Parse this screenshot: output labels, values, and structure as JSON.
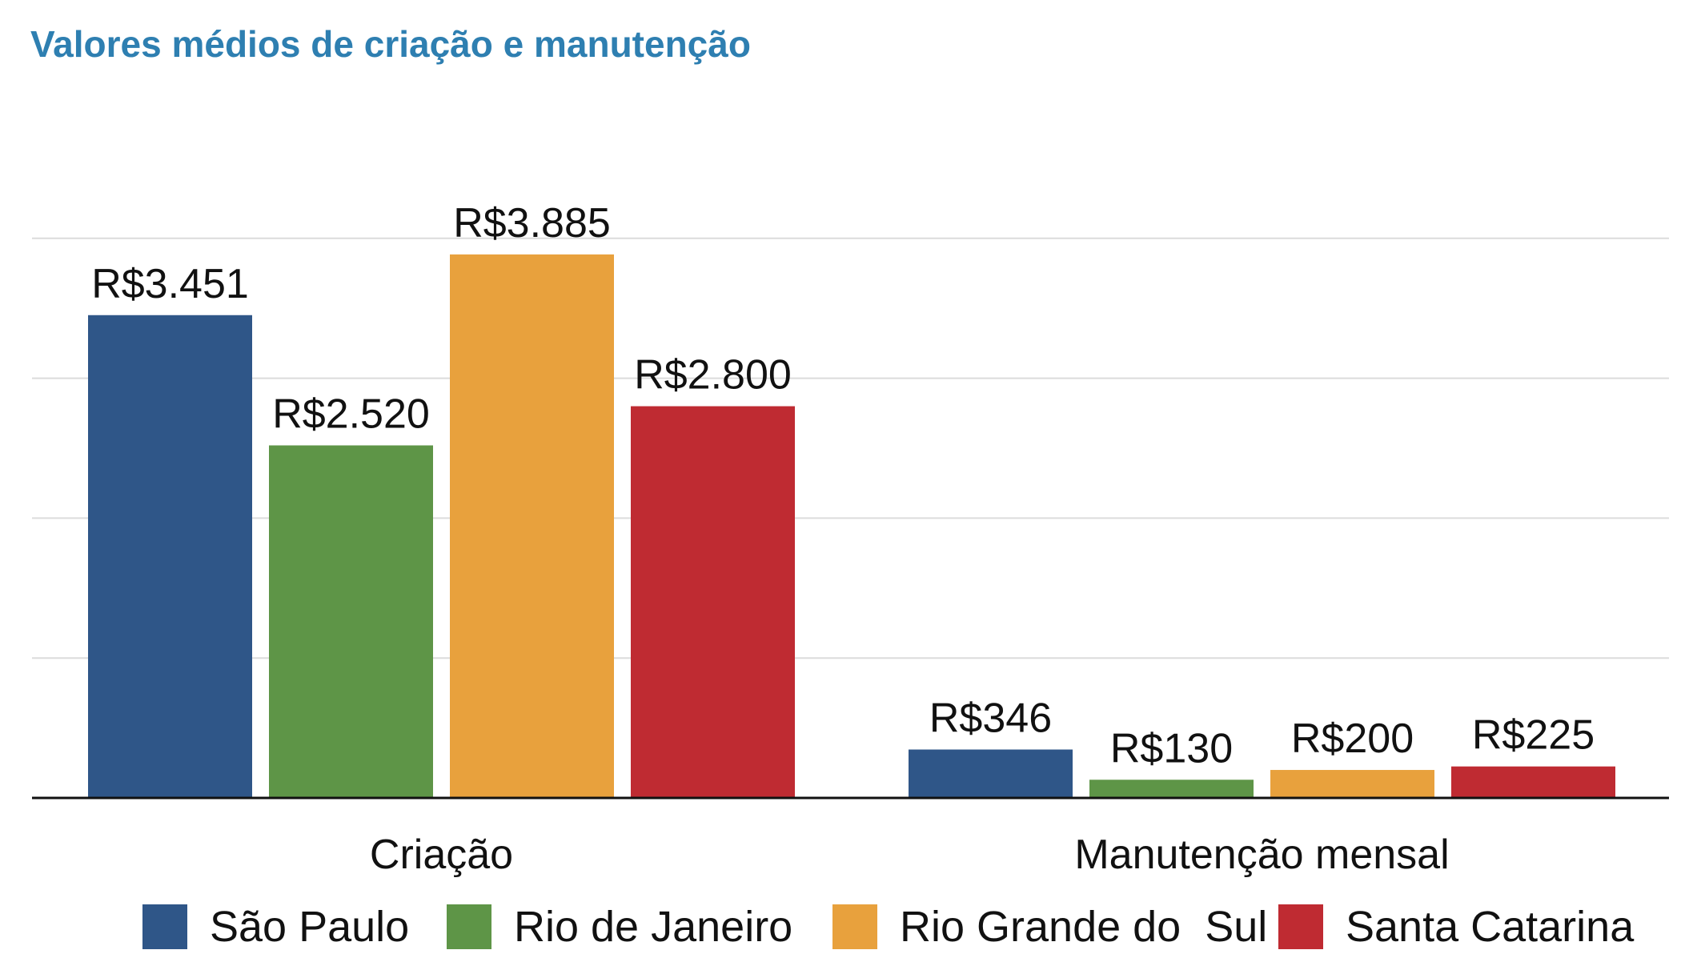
{
  "chart_data": {
    "type": "bar",
    "title": "Valores médios de criação e manutenção",
    "categories": [
      "Criação",
      "Manutenção mensal"
    ],
    "series": [
      {
        "name": "São Paulo",
        "color": "#2f5688",
        "values": [
          3451,
          346
        ],
        "labels": [
          "R$3.451",
          "R$346"
        ]
      },
      {
        "name": "Rio de Janeiro",
        "color": "#5e9547",
        "values": [
          2520,
          130
        ],
        "labels": [
          "R$2.520",
          "R$130"
        ]
      },
      {
        "name": "Rio Grande do  Sul",
        "color": "#e8a13d",
        "values": [
          3885,
          200
        ],
        "labels": [
          "R$3.885",
          "R$200"
        ]
      },
      {
        "name": "Santa Catarina",
        "color": "#bf2b32",
        "values": [
          2800,
          225
        ],
        "labels": [
          "R$2.800",
          "R$225"
        ]
      }
    ],
    "ylim": [
      0,
      4000
    ],
    "grid": true,
    "legend_position": "bottom",
    "xlabel": "",
    "ylabel": ""
  }
}
